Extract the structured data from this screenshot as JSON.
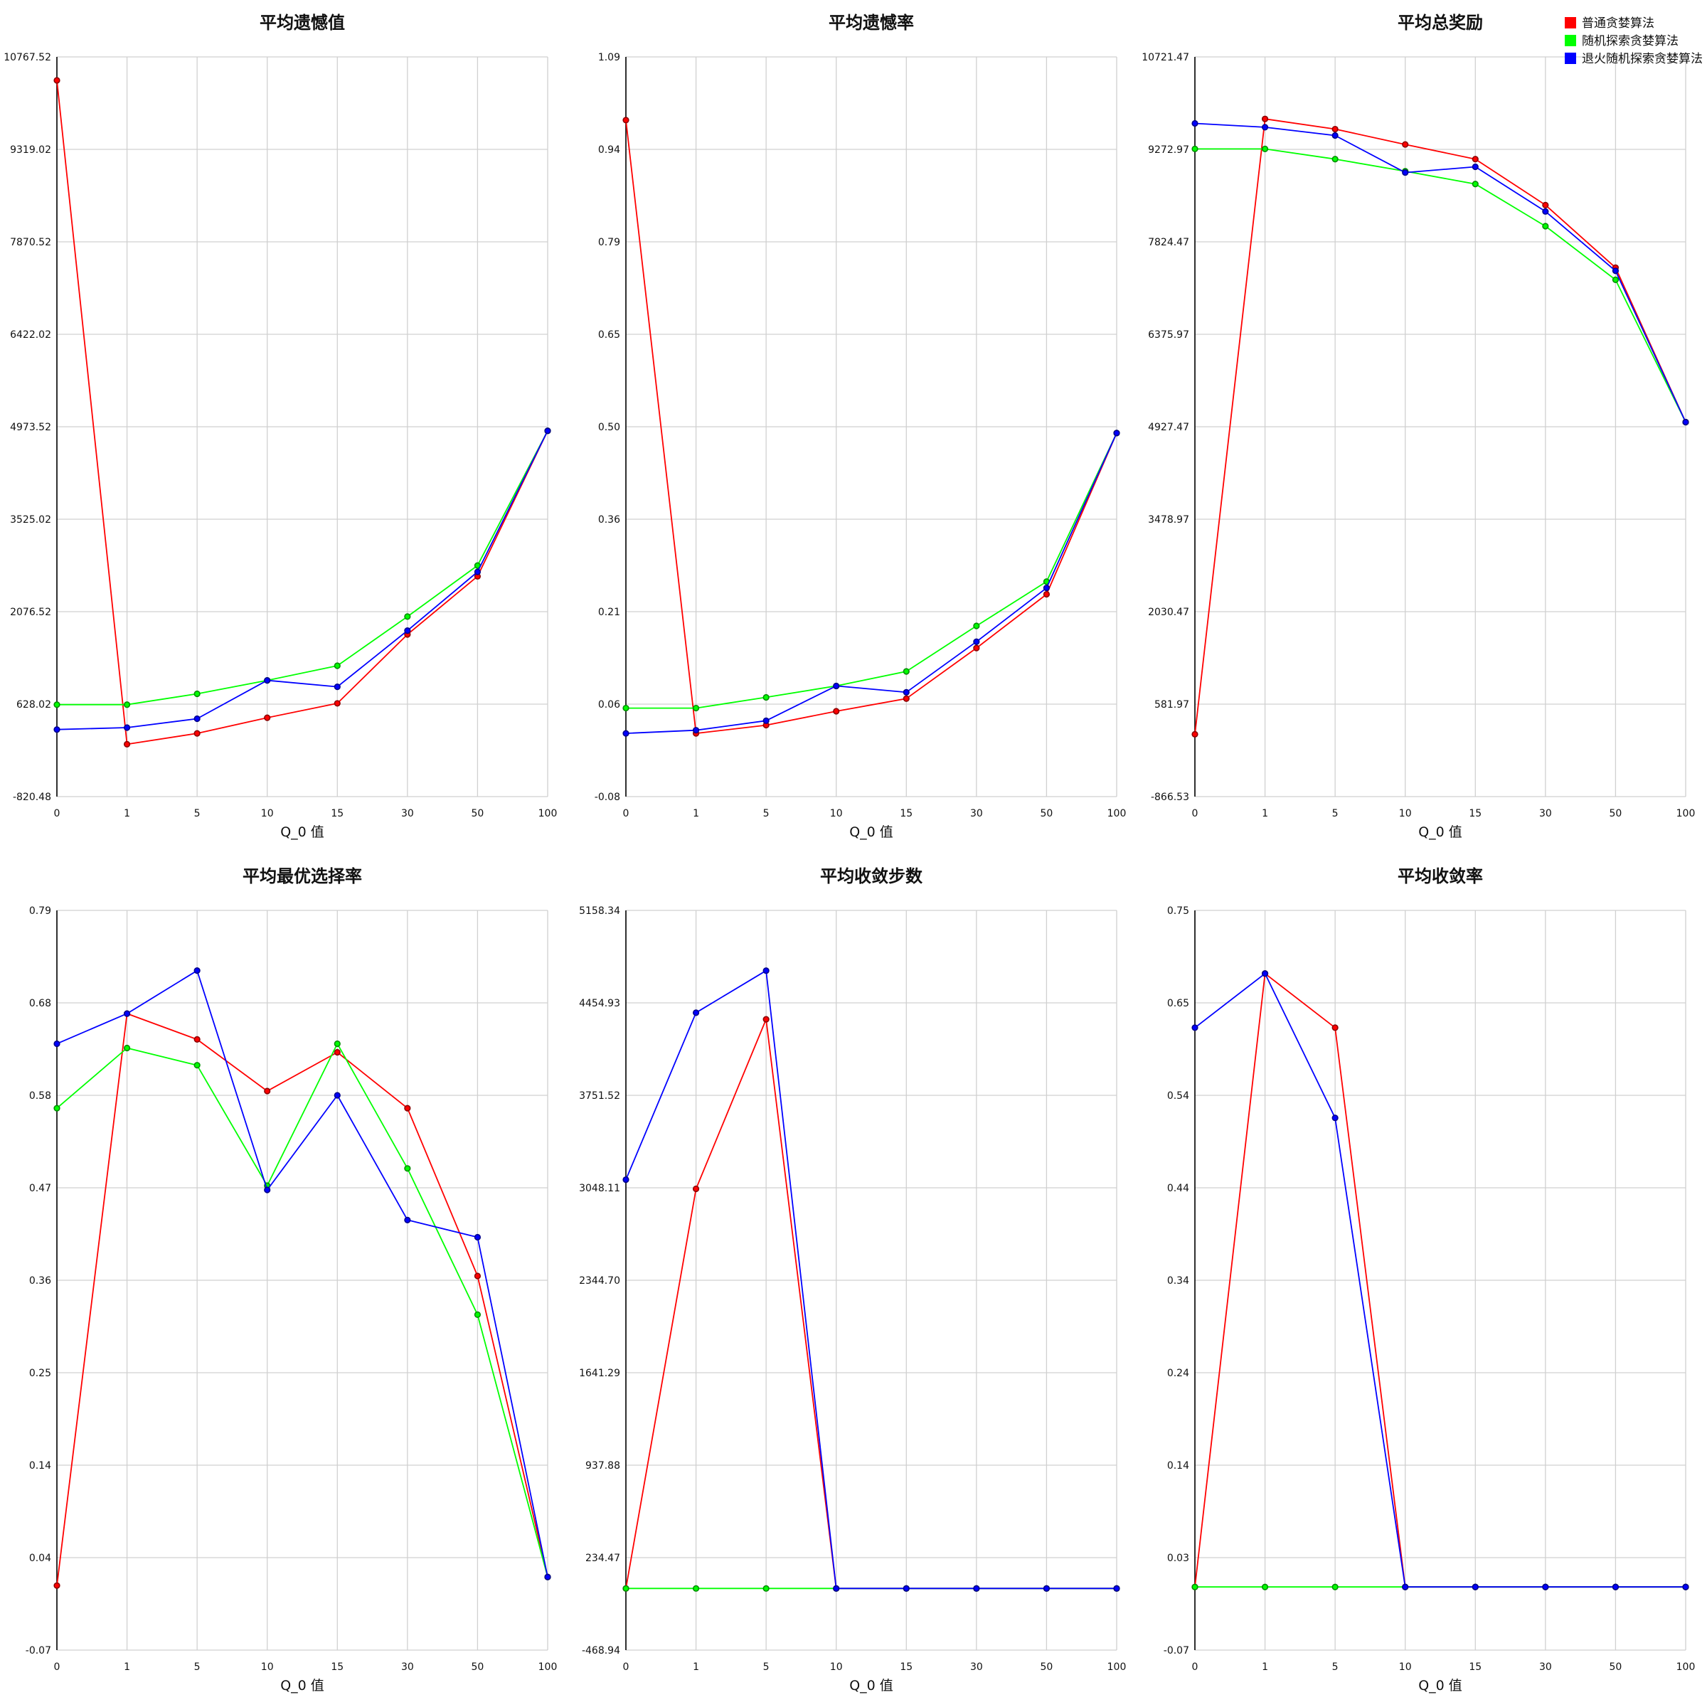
{
  "legend": {
    "placement": "top-right",
    "items": [
      {
        "label": "普通贪婪算法",
        "color": "#ff0000"
      },
      {
        "label": "随机探索贪婪算法",
        "color": "#00ff00"
      },
      {
        "label": "退火随机探索贪婪算法",
        "color": "#0000ff"
      }
    ]
  },
  "chart_data": [
    {
      "type": "line",
      "title": "平均遗憾值",
      "xlabel": "Q_0 值",
      "ylabel": "",
      "categories": [
        "0",
        "1",
        "5",
        "10",
        "15",
        "30",
        "50",
        "100"
      ],
      "ylim": [
        -820.48,
        10767.52
      ],
      "yticks": [
        "-820.48",
        "628.02",
        "2076.52",
        "3525.02",
        "4973.52",
        "6422.02",
        "7870.52",
        "9319.02",
        "10767.52"
      ],
      "grid": true,
      "series": [
        {
          "name": "普通贪婪算法",
          "color": "#ff0000",
          "values": [
            10400,
            0,
            170,
            415,
            640,
            1720,
            2630,
            4910
          ]
        },
        {
          "name": "随机探索贪婪算法",
          "color": "#00ff00",
          "values": [
            620,
            620,
            790,
            1000,
            1230,
            2000,
            2800,
            4910
          ]
        },
        {
          "name": "退火随机探索贪婪算法",
          "color": "#0000ff",
          "values": [
            230,
            260,
            400,
            1000,
            900,
            1780,
            2700,
            4910
          ]
        }
      ]
    },
    {
      "type": "line",
      "title": "平均遗憾率",
      "xlabel": "Q_0 值",
      "ylabel": "",
      "categories": [
        "0",
        "1",
        "5",
        "10",
        "15",
        "30",
        "50",
        "100"
      ],
      "ylim": [
        -0.08,
        1.09
      ],
      "yticks": [
        "-0.08",
        "0.06",
        "0.21",
        "0.36",
        "0.50",
        "0.65",
        "0.79",
        "0.94",
        "1.09"
      ],
      "grid": true,
      "series": [
        {
          "name": "普通贪婪算法",
          "color": "#ff0000",
          "values": [
            0.99,
            0.02,
            0.033,
            0.055,
            0.075,
            0.155,
            0.24,
            0.495
          ]
        },
        {
          "name": "随机探索贪婪算法",
          "color": "#00ff00",
          "values": [
            0.06,
            0.06,
            0.077,
            0.095,
            0.118,
            0.19,
            0.26,
            0.495
          ]
        },
        {
          "name": "退火随机探索贪婪算法",
          "color": "#0000ff",
          "values": [
            0.02,
            0.025,
            0.04,
            0.095,
            0.085,
            0.165,
            0.25,
            0.495
          ]
        }
      ]
    },
    {
      "type": "line",
      "title": "平均总奖励",
      "xlabel": "Q_0 值",
      "ylabel": "",
      "categories": [
        "0",
        "1",
        "5",
        "10",
        "15",
        "30",
        "50",
        "100"
      ],
      "ylim": [
        -866.53,
        10721.47
      ],
      "yticks": [
        "-866.53",
        "581.97",
        "2030.47",
        "3478.97",
        "4927.47",
        "6375.97",
        "7824.47",
        "9272.97",
        "10721.47"
      ],
      "grid": true,
      "series": [
        {
          "name": "普通贪婪算法",
          "color": "#ff0000",
          "values": [
            110,
            9750,
            9590,
            9350,
            9120,
            8400,
            7420,
            5000
          ]
        },
        {
          "name": "随机探索贪婪算法",
          "color": "#00ff00",
          "values": [
            9280,
            9280,
            9120,
            8930,
            8730,
            8070,
            7230,
            5000
          ]
        },
        {
          "name": "退火随机探索贪婪算法",
          "color": "#0000ff",
          "values": [
            9680,
            9620,
            9490,
            8910,
            9000,
            8300,
            7370,
            5000
          ]
        }
      ]
    },
    {
      "type": "line",
      "title": "平均最优选择率",
      "xlabel": "Q_0 值",
      "ylabel": "",
      "categories": [
        "0",
        "1",
        "5",
        "10",
        "15",
        "30",
        "50",
        "100"
      ],
      "ylim": [
        -0.07,
        0.79
      ],
      "yticks": [
        "-0.07",
        "0.04",
        "0.14",
        "0.25",
        "0.36",
        "0.47",
        "0.58",
        "0.68",
        "0.79"
      ],
      "grid": true,
      "series": [
        {
          "name": "普通贪婪算法",
          "color": "#ff0000",
          "values": [
            0.005,
            0.67,
            0.64,
            0.58,
            0.625,
            0.56,
            0.365,
            0.015
          ]
        },
        {
          "name": "随机探索贪婪算法",
          "color": "#00ff00",
          "values": [
            0.56,
            0.63,
            0.61,
            0.47,
            0.635,
            0.49,
            0.32,
            0.015
          ]
        },
        {
          "name": "退火随机探索贪婪算法",
          "color": "#0000ff",
          "values": [
            0.635,
            0.67,
            0.72,
            0.465,
            0.575,
            0.43,
            0.41,
            0.015
          ]
        }
      ]
    },
    {
      "type": "line",
      "title": "平均收敛步数",
      "xlabel": "Q_0 值",
      "ylabel": "",
      "categories": [
        "0",
        "1",
        "5",
        "10",
        "15",
        "30",
        "50",
        "100"
      ],
      "ylim": [
        -468.94,
        5158.34
      ],
      "yticks": [
        "-468.94",
        "234.47",
        "937.88",
        "1641.29",
        "2344.70",
        "3048.11",
        "3751.52",
        "4454.93",
        "5158.34"
      ],
      "grid": true,
      "series": [
        {
          "name": "普通贪婪算法",
          "color": "#ff0000",
          "values": [
            0,
            3040,
            4330,
            0,
            0,
            0,
            0,
            0
          ]
        },
        {
          "name": "随机探索贪婪算法",
          "color": "#00ff00",
          "values": [
            0,
            0,
            0,
            0,
            0,
            0,
            0,
            0
          ]
        },
        {
          "name": "退火随机探索贪婪算法",
          "color": "#0000ff",
          "values": [
            3110,
            4380,
            4700,
            0,
            0,
            0,
            0,
            0
          ]
        }
      ]
    },
    {
      "type": "line",
      "title": "平均收敛率",
      "xlabel": "Q_0 值",
      "ylabel": "",
      "categories": [
        "0",
        "1",
        "5",
        "10",
        "15",
        "30",
        "50",
        "100"
      ],
      "ylim": [
        -0.07,
        0.75
      ],
      "yticks": [
        "-0.07",
        "0.03",
        "0.14",
        "0.24",
        "0.34",
        "0.44",
        "0.54",
        "0.65",
        "0.75"
      ],
      "grid": true,
      "series": [
        {
          "name": "普通贪婪算法",
          "color": "#ff0000",
          "values": [
            0,
            0.68,
            0.62,
            0,
            0,
            0,
            0,
            0
          ]
        },
        {
          "name": "随机探索贪婪算法",
          "color": "#00ff00",
          "values": [
            0,
            0,
            0,
            0,
            0,
            0,
            0,
            0
          ]
        },
        {
          "name": "退火随机探索贪婪算法",
          "color": "#0000ff",
          "values": [
            0.62,
            0.68,
            0.52,
            0,
            0,
            0,
            0,
            0
          ]
        }
      ]
    }
  ]
}
